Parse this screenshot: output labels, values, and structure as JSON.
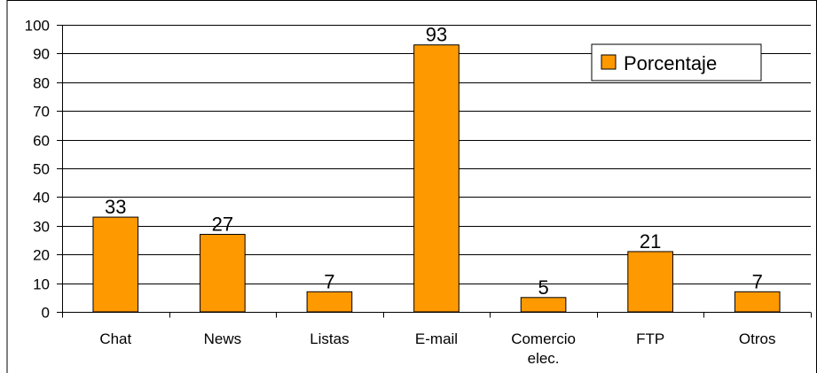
{
  "chart_data": {
    "type": "bar",
    "categories": [
      "Chat",
      "News",
      "Listas",
      "E-mail",
      "Comercio elec.",
      "FTP",
      "Otros"
    ],
    "category_lines": [
      [
        "Chat"
      ],
      [
        "News"
      ],
      [
        "Listas"
      ],
      [
        "E-mail"
      ],
      [
        "Comercio",
        "elec."
      ],
      [
        "FTP"
      ],
      [
        "Otros"
      ]
    ],
    "series": [
      {
        "name": "Porcentaje",
        "values": [
          33,
          27,
          7,
          93,
          5,
          21,
          7
        ]
      }
    ],
    "data_labels": [
      "33",
      "27",
      "7",
      "93",
      "5",
      "21",
      "7"
    ],
    "y_ticks": [
      0,
      10,
      20,
      30,
      40,
      50,
      60,
      70,
      80,
      90,
      100
    ],
    "ylim": [
      0,
      100
    ],
    "grid": true,
    "legend_position": "top-right",
    "title": "",
    "xlabel": "",
    "ylabel": "",
    "colors": {
      "bar": "#ff9900",
      "bar_edge": "#000000",
      "grid": "#000000",
      "background": "#ffffff"
    }
  }
}
